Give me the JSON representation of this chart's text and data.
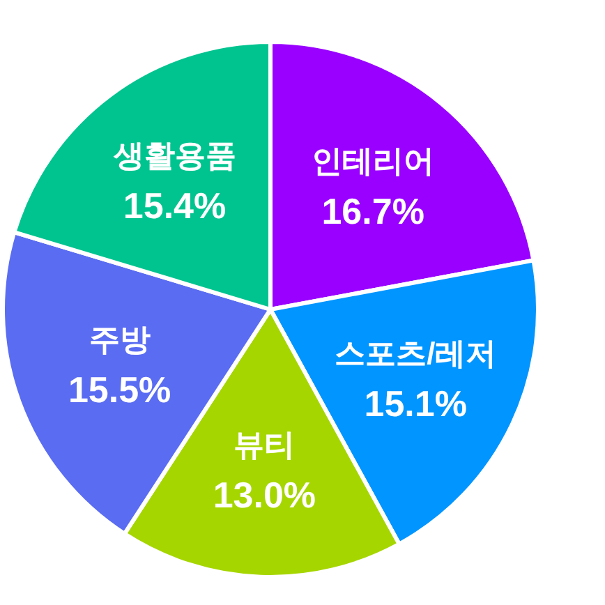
{
  "chart_data": {
    "type": "pie",
    "categories": [
      "인테리어",
      "스포츠/레저",
      "뷰티",
      "주방",
      "생활용품"
    ],
    "values": [
      16.7,
      15.1,
      13.0,
      15.5,
      15.4
    ],
    "colors": [
      "#9900ff",
      "#0095ff",
      "#a6d600",
      "#5a6cf2",
      "#00c48f"
    ],
    "value_labels": [
      "16.7%",
      "15.1%",
      "13.0%",
      "15.5%",
      "15.4%"
    ]
  }
}
